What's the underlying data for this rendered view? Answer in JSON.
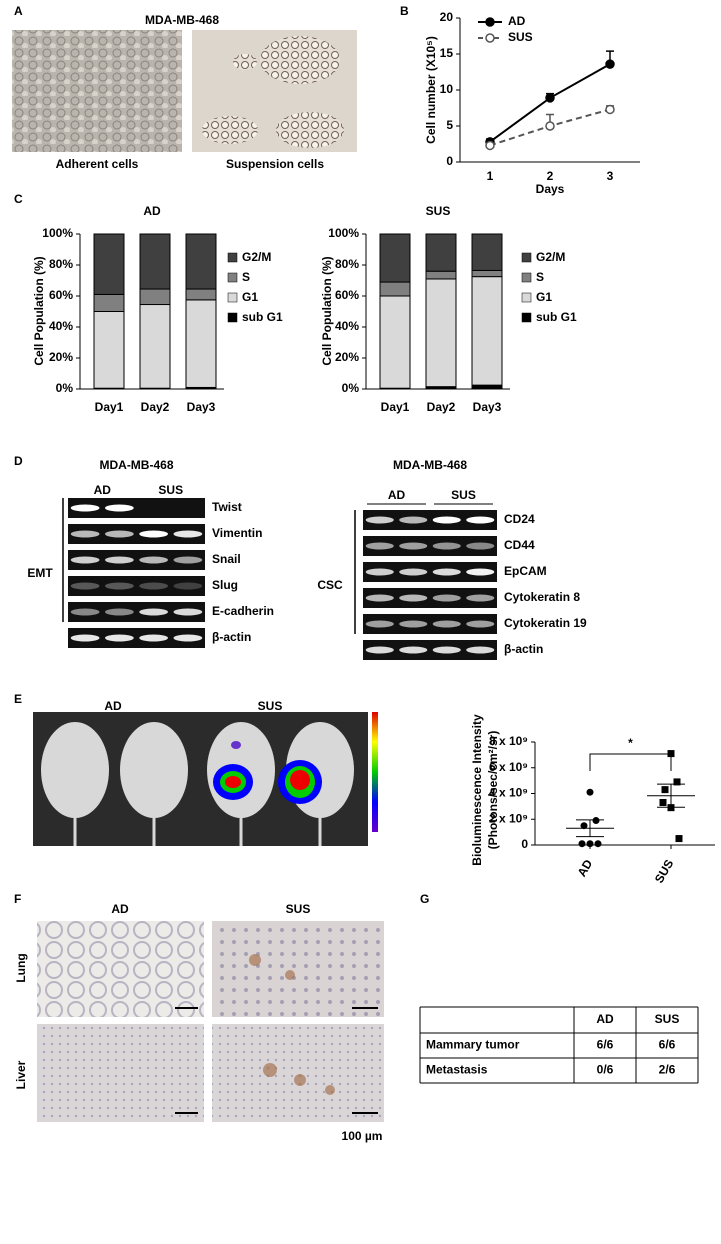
{
  "panel_labels": [
    "A",
    "B",
    "C",
    "D",
    "E",
    "F",
    "G"
  ],
  "figure_a": {
    "title": "MDA-MB-468",
    "captions": [
      "Adherent cells",
      "Suspension cells"
    ]
  },
  "chart_data": [
    {
      "type": "line",
      "x_label": "Days",
      "y_label": "Cell number (X10⁵)",
      "categories": [
        "1",
        "2",
        "3"
      ],
      "series": [
        {
          "name": "AD",
          "color": "#000000",
          "dashed": false,
          "marker_fill": "#000000",
          "values": [
            2.8,
            8.9,
            13.6
          ],
          "errors": [
            0.4,
            0.6,
            1.8
          ]
        },
        {
          "name": "SUS",
          "color": "#555555",
          "dashed": true,
          "marker_fill": "#ffffff",
          "values": [
            2.3,
            5.0,
            7.3
          ],
          "errors": [
            0.2,
            1.6,
            0.5
          ]
        }
      ],
      "ylim": [
        0,
        20
      ],
      "yticks": [
        0,
        5,
        10,
        15,
        20
      ]
    },
    {
      "type": "stacked_bar",
      "title": "AD",
      "y_label": "Cell Population (%)",
      "categories": [
        "Day1",
        "Day2",
        "Day3"
      ],
      "series": [
        {
          "name": "sub G1",
          "color": "#000000",
          "values": [
            0.5,
            0.5,
            1
          ]
        },
        {
          "name": "G1",
          "color": "#d9d9d9",
          "values": [
            49.5,
            54,
            56.5
          ]
        },
        {
          "name": "S",
          "color": "#808080",
          "values": [
            11,
            10,
            7
          ]
        },
        {
          "name": "G2/M",
          "color": "#404040",
          "values": [
            39,
            35.5,
            35.5
          ]
        }
      ],
      "ylim": [
        0,
        100
      ],
      "yticks": [
        {
          "value": 0,
          "label": "0%"
        },
        {
          "value": 20,
          "label": "20%"
        },
        {
          "value": 40,
          "label": "40%"
        },
        {
          "value": 60,
          "label": "60%"
        },
        {
          "value": 80,
          "label": "80%"
        },
        {
          "value": 100,
          "label": "100%"
        }
      ]
    },
    {
      "type": "stacked_bar",
      "title": "SUS",
      "y_label": "Cell Population (%)",
      "categories": [
        "Day1",
        "Day2",
        "Day3"
      ],
      "series": [
        {
          "name": "sub G1",
          "color": "#000000",
          "values": [
            0.5,
            1.5,
            2.5
          ]
        },
        {
          "name": "G1",
          "color": "#d9d9d9",
          "values": [
            59.5,
            69.5,
            70
          ]
        },
        {
          "name": "S",
          "color": "#808080",
          "values": [
            9,
            5,
            4
          ]
        },
        {
          "name": "G2/M",
          "color": "#404040",
          "values": [
            31,
            24,
            23.5
          ]
        }
      ],
      "ylim": [
        0,
        100
      ],
      "yticks": [
        {
          "value": 0,
          "label": "0%"
        },
        {
          "value": 20,
          "label": "20%"
        },
        {
          "value": 40,
          "label": "40%"
        },
        {
          "value": 60,
          "label": "60%"
        },
        {
          "value": 80,
          "label": "80%"
        },
        {
          "value": 100,
          "label": "100%"
        }
      ]
    },
    {
      "type": "scatter",
      "y_label": [
        "Bioluminescence Intensity",
        "(Photons/sec/cm²/sr)"
      ],
      "categories": [
        "AD",
        "SUS"
      ],
      "markers": [
        "circle",
        "square"
      ],
      "values": [
        [
          4100000000,
          1900000000,
          1500000000,
          100000000,
          100000000,
          100000000
        ],
        [
          7100000000,
          4900000000,
          4300000000,
          3300000000,
          2900000000,
          500000000
        ]
      ],
      "means": [
        1300000000,
        3830000000
      ],
      "sems": [
        650000000,
        900000000
      ],
      "annotation": "*",
      "ylim": [
        0,
        8000000000
      ],
      "yticks": [
        0,
        {
          "value": 2000000000,
          "label": "2 x 10⁹"
        },
        {
          "value": 4000000000,
          "label": "4 x 10⁹"
        },
        {
          "value": 6000000000,
          "label": "6 x 10⁹"
        },
        {
          "value": 8000000000,
          "label": "8 x 10⁹"
        }
      ]
    }
  ],
  "figure_d": [
    {
      "title": "MDA-MB-468",
      "groups": [
        "AD",
        "SUS"
      ],
      "bracket": "EMT",
      "genes": [
        "Twist",
        "Vimentin",
        "Snail",
        "Slug",
        "E-cadherin",
        "β-actin"
      ]
    },
    {
      "title": "MDA-MB-468",
      "groups": [
        "AD",
        "SUS"
      ],
      "bracket": "CSC",
      "genes": [
        "CD24",
        "CD44",
        "EpCAM",
        "Cytokeratin 8",
        "Cytokeratin 19",
        "β-actin"
      ]
    }
  ],
  "figure_e": {
    "groups": [
      "AD",
      "SUS"
    ]
  },
  "figure_f": {
    "columns": [
      "AD",
      "SUS"
    ],
    "rows": [
      "Lung",
      "Liver"
    ],
    "scale": "100 µm"
  },
  "table": {
    "columns": [
      "AD",
      "SUS"
    ],
    "rows": [
      {
        "label": "Mammary tumor",
        "cells": [
          "6/6",
          "6/6"
        ]
      },
      {
        "label": "Metastasis",
        "cells": [
          "0/6",
          "2/6"
        ]
      }
    ]
  }
}
